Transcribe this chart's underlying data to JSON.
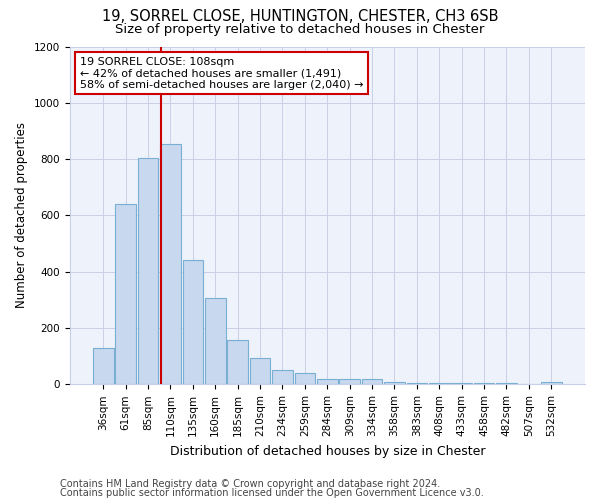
{
  "title1": "19, SORREL CLOSE, HUNTINGTON, CHESTER, CH3 6SB",
  "title2": "Size of property relative to detached houses in Chester",
  "xlabel": "Distribution of detached houses by size in Chester",
  "ylabel": "Number of detached properties",
  "categories": [
    "36sqm",
    "61sqm",
    "85sqm",
    "110sqm",
    "135sqm",
    "160sqm",
    "185sqm",
    "210sqm",
    "234sqm",
    "259sqm",
    "284sqm",
    "309sqm",
    "334sqm",
    "358sqm",
    "383sqm",
    "408sqm",
    "433sqm",
    "458sqm",
    "482sqm",
    "507sqm",
    "532sqm"
  ],
  "values": [
    130,
    640,
    805,
    855,
    440,
    308,
    158,
    92,
    52,
    40,
    18,
    18,
    18,
    10,
    5,
    3,
    3,
    3,
    3,
    0,
    8
  ],
  "bar_color": "#c8d8ee",
  "bar_edge_color": "#7aafd4",
  "vline_x_index": 3,
  "vline_color": "#cc0000",
  "annotation_text": "19 SORREL CLOSE: 108sqm\n← 42% of detached houses are smaller (1,491)\n58% of semi-detached houses are larger (2,040) →",
  "annotation_box_color": "#ffffff",
  "annotation_box_edge": "#cc0000",
  "ylim": [
    0,
    1200
  ],
  "yticks": [
    0,
    200,
    400,
    600,
    800,
    1000,
    1200
  ],
  "footer1": "Contains HM Land Registry data © Crown copyright and database right 2024.",
  "footer2": "Contains public sector information licensed under the Open Government Licence v3.0.",
  "bg_color": "#ffffff",
  "plot_bg_color": "#eef2fb",
  "grid_color": "#c8cfe8",
  "title1_fontsize": 10.5,
  "title2_fontsize": 9.5,
  "xlabel_fontsize": 9,
  "ylabel_fontsize": 8.5,
  "tick_fontsize": 7.5,
  "footer_fontsize": 7,
  "annot_fontsize": 8
}
